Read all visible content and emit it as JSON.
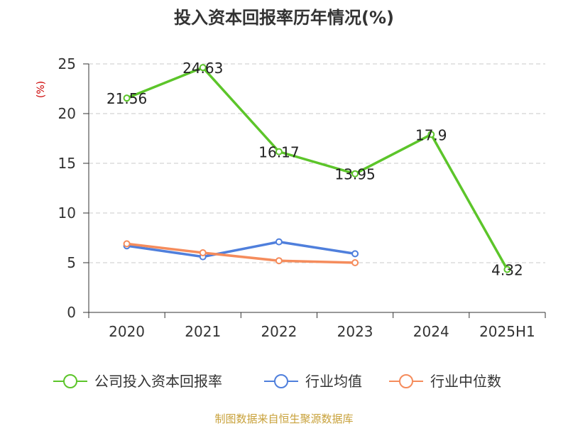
{
  "chart_data": {
    "type": "line",
    "title": "投入资本回报率历年情况(%)",
    "ylabel": "(%)",
    "xlabel": "",
    "categories": [
      "2020",
      "2021",
      "2022",
      "2023",
      "2024",
      "2025H1"
    ],
    "ylim": [
      0,
      25
    ],
    "yticks": [
      0,
      5,
      10,
      15,
      20,
      25
    ],
    "grid": "horizontal-dashed",
    "legend_position": "bottom",
    "series": [
      {
        "name": "公司投入资本回报率",
        "color": "#5cc52a",
        "values": [
          21.56,
          24.63,
          16.17,
          13.95,
          17.9,
          4.32
        ],
        "labels": [
          "21.56",
          "24.63",
          "16.17",
          "13.95",
          "17.9",
          "4.32"
        ]
      },
      {
        "name": "行业均值",
        "color": "#4f7fdc",
        "values": [
          6.7,
          5.6,
          7.1,
          5.9,
          null,
          null
        ]
      },
      {
        "name": "行业中位数",
        "color": "#f58c5c",
        "values": [
          6.9,
          6.0,
          5.2,
          5.0,
          null,
          null
        ]
      }
    ]
  },
  "source": "制图数据来自恒生聚源数据库",
  "colors": {
    "ylabel": "#cc0000",
    "source": "#c8a13a",
    "grid": "#c8c8c8",
    "axis": "#333333"
  }
}
